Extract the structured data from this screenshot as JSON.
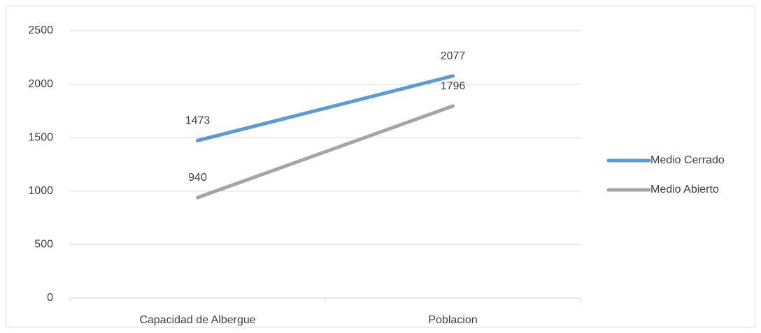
{
  "chart_data": {
    "type": "line",
    "categories": [
      "Capacidad de Albergue",
      "Poblacion"
    ],
    "series": [
      {
        "name": "Medio Cerrado",
        "color": "#5b9bd5",
        "values": [
          1473,
          2077
        ]
      },
      {
        "name": "Medio Abierto",
        "color": "#a5a5a5",
        "values": [
          940,
          1796
        ]
      }
    ],
    "ylim": [
      0,
      2500
    ],
    "yticks": [
      0,
      500,
      1000,
      1500,
      2000,
      2500
    ],
    "grid": true,
    "legend": "right"
  }
}
